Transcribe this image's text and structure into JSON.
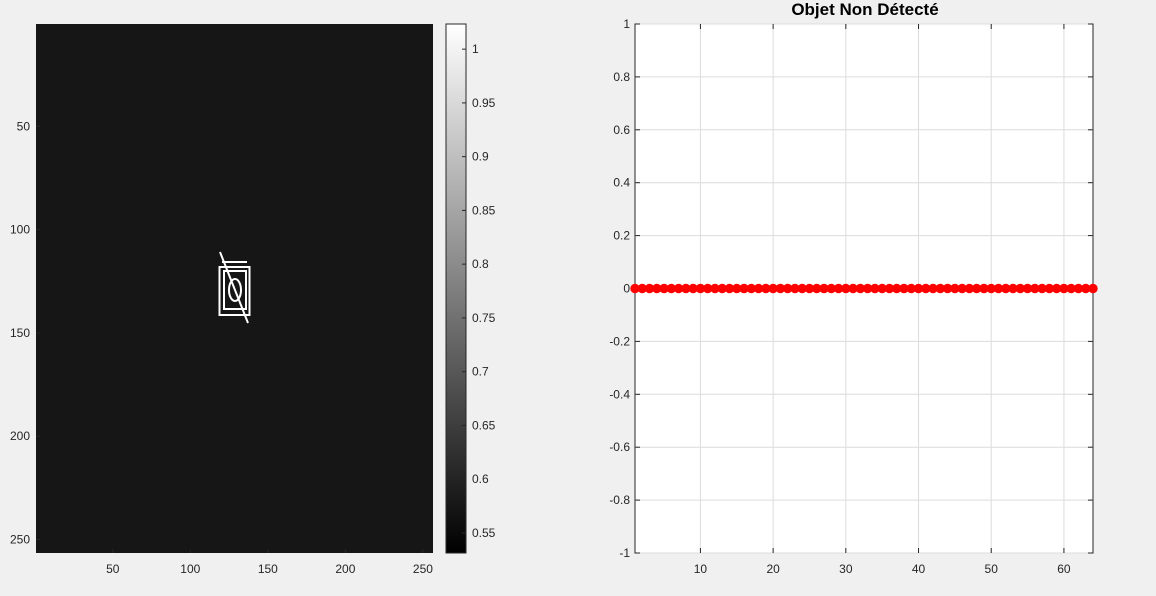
{
  "figure": {
    "background": "#f0f0f0"
  },
  "chart_data": [
    {
      "type": "heatmap",
      "title": "",
      "xlabel": "",
      "ylabel": "",
      "image_size": [
        256,
        256
      ],
      "xlim": [
        0.5,
        256.5
      ],
      "ylim": [
        0.5,
        256.5
      ],
      "y_direction": "reverse",
      "x_ticks": [
        50,
        100,
        150,
        200,
        250
      ],
      "y_ticks": [
        50,
        100,
        150,
        200,
        250
      ],
      "colormap": "gray",
      "background_value": 0.55,
      "shape_value": 1,
      "colorbar": {
        "range": [
          0.5313,
          1.0234
        ],
        "ticks": [
          0.55,
          0.6,
          0.65,
          0.7,
          0.75,
          0.8,
          0.85,
          0.9,
          0.95,
          1
        ],
        "tick_labels": [
          "0.55",
          "0.6",
          "0.65",
          "0.7",
          "0.75",
          "0.8",
          "0.85",
          "0.9",
          "0.95",
          "1"
        ]
      },
      "grid": false
    },
    {
      "type": "scatter",
      "title": "Objet Non Détecté",
      "xlabel": "",
      "ylabel": "",
      "xlim": [
        1,
        64
      ],
      "ylim": [
        -1,
        1
      ],
      "x_ticks": [
        10,
        20,
        30,
        40,
        50,
        60
      ],
      "y_ticks": [
        -1,
        -0.8,
        -0.6,
        -0.4,
        -0.2,
        0,
        0.2,
        0.4,
        0.6,
        0.8,
        1
      ],
      "y_tick_labels": [
        "-1",
        "-0.8",
        "-0.6",
        "-0.4",
        "-0.2",
        "0",
        "0.2",
        "0.4",
        "0.6",
        "0.8",
        "1"
      ],
      "grid": true,
      "series": [
        {
          "x": [
            1,
            2,
            3,
            4,
            5,
            6,
            7,
            8,
            9,
            10,
            11,
            12,
            13,
            14,
            15,
            16,
            17,
            18,
            19,
            20,
            21,
            22,
            23,
            24,
            25,
            26,
            27,
            28,
            29,
            30,
            31,
            32,
            33,
            34,
            35,
            36,
            37,
            38,
            39,
            40,
            41,
            42,
            43,
            44,
            45,
            46,
            47,
            48,
            49,
            50,
            51,
            52,
            53,
            54,
            55,
            56,
            57,
            58,
            59,
            60,
            61,
            62,
            63,
            64
          ],
          "values": [
            0,
            0,
            0,
            0,
            0,
            0,
            0,
            0,
            0,
            0,
            0,
            0,
            0,
            0,
            0,
            0,
            0,
            0,
            0,
            0,
            0,
            0,
            0,
            0,
            0,
            0,
            0,
            0,
            0,
            0,
            0,
            0,
            0,
            0,
            0,
            0,
            0,
            0,
            0,
            0,
            0,
            0,
            0,
            0,
            0,
            0,
            0,
            0,
            0,
            0,
            0,
            0,
            0,
            0,
            0,
            0,
            0,
            0,
            0,
            0,
            0,
            0,
            0,
            0
          ],
          "color": "#ff0000",
          "marker": "filled-circle"
        }
      ]
    }
  ]
}
